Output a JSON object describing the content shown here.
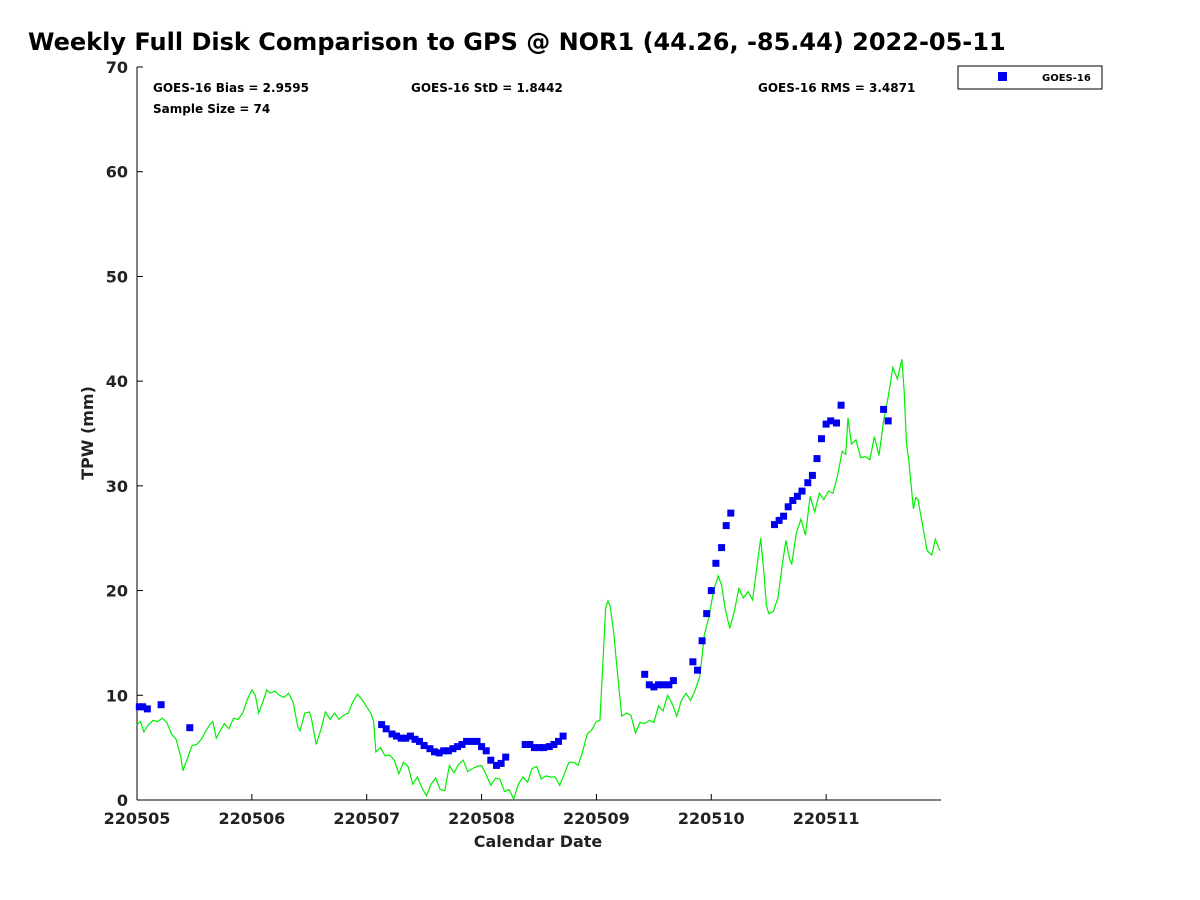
{
  "chart_data": {
    "type": "scatter",
    "title": "Weekly Full Disk Comparison to GPS @ NOR1 (44.26, -85.44) 2022-05-11",
    "xlabel": "Calendar Date",
    "ylabel": "TPW (mm)",
    "ylim": [
      0,
      70
    ],
    "xlim": [
      0,
      7
    ],
    "x_ticks": [
      {
        "x": 0,
        "label": "220505"
      },
      {
        "x": 1,
        "label": "220506"
      },
      {
        "x": 2,
        "label": "220507"
      },
      {
        "x": 3,
        "label": "220508"
      },
      {
        "x": 4,
        "label": "220509"
      },
      {
        "x": 5,
        "label": "220510"
      },
      {
        "x": 6,
        "label": "220511"
      }
    ],
    "y_ticks": [
      0,
      10,
      20,
      30,
      40,
      50,
      60,
      70
    ],
    "legend": {
      "position": "top-right",
      "entries": [
        "GOES-16"
      ]
    },
    "stats": {
      "bias": "GOES-16 Bias = 2.9595",
      "std": "GOES-16 StD = 1.8442",
      "rms": "GOES-16 RMS = 3.4871",
      "sample": "Sample Size = 74"
    },
    "series": [
      {
        "name": "GOES-16",
        "kind": "scatter",
        "color": "#0000ee",
        "points": [
          [
            0.02,
            8.9
          ],
          [
            0.05,
            8.9
          ],
          [
            0.09,
            8.7
          ],
          [
            0.21,
            9.1
          ],
          [
            0.46,
            6.9
          ],
          [
            2.13,
            7.2
          ],
          [
            2.17,
            6.8
          ],
          [
            2.22,
            6.3
          ],
          [
            2.26,
            6.1
          ],
          [
            2.3,
            5.9
          ],
          [
            2.34,
            5.9
          ],
          [
            2.38,
            6.1
          ],
          [
            2.42,
            5.8
          ],
          [
            2.46,
            5.6
          ],
          [
            2.5,
            5.2
          ],
          [
            2.55,
            4.9
          ],
          [
            2.59,
            4.6
          ],
          [
            2.63,
            4.5
          ],
          [
            2.67,
            4.7
          ],
          [
            2.71,
            4.7
          ],
          [
            2.75,
            4.9
          ],
          [
            2.79,
            5.1
          ],
          [
            2.83,
            5.3
          ],
          [
            2.87,
            5.6
          ],
          [
            2.92,
            5.6
          ],
          [
            2.96,
            5.6
          ],
          [
            3.0,
            5.1
          ],
          [
            3.04,
            4.7
          ],
          [
            3.08,
            3.8
          ],
          [
            3.13,
            3.3
          ],
          [
            3.17,
            3.5
          ],
          [
            3.21,
            4.1
          ],
          [
            3.38,
            5.3
          ],
          [
            3.42,
            5.3
          ],
          [
            3.46,
            5.0
          ],
          [
            3.5,
            5.0
          ],
          [
            3.54,
            5.0
          ],
          [
            3.59,
            5.1
          ],
          [
            3.63,
            5.3
          ],
          [
            3.67,
            5.6
          ],
          [
            3.71,
            6.1
          ],
          [
            4.42,
            12.0
          ],
          [
            4.46,
            11.0
          ],
          [
            4.5,
            10.8
          ],
          [
            4.54,
            11.0
          ],
          [
            4.58,
            11.0
          ],
          [
            4.63,
            11.0
          ],
          [
            4.67,
            11.4
          ],
          [
            4.84,
            13.2
          ],
          [
            4.88,
            12.4
          ],
          [
            4.92,
            15.2
          ],
          [
            4.96,
            17.8
          ],
          [
            5.0,
            20.0
          ],
          [
            5.04,
            22.6
          ],
          [
            5.09,
            24.1
          ],
          [
            5.13,
            26.2
          ],
          [
            5.17,
            27.4
          ],
          [
            5.55,
            26.3
          ],
          [
            5.59,
            26.7
          ],
          [
            5.63,
            27.1
          ],
          [
            5.67,
            28.0
          ],
          [
            5.71,
            28.6
          ],
          [
            5.75,
            29.0
          ],
          [
            5.79,
            29.5
          ],
          [
            5.84,
            30.3
          ],
          [
            5.88,
            31.0
          ],
          [
            5.92,
            32.6
          ],
          [
            5.96,
            34.5
          ],
          [
            6.0,
            35.9
          ],
          [
            6.04,
            36.2
          ],
          [
            6.09,
            36.0
          ],
          [
            6.13,
            37.7
          ],
          [
            6.5,
            37.3
          ],
          [
            6.54,
            36.2
          ]
        ]
      },
      {
        "name": "GPS",
        "kind": "line",
        "color": "#00ee00",
        "points": [
          [
            0.0,
            7.2
          ],
          [
            0.03,
            7.5
          ],
          [
            0.06,
            6.5
          ],
          [
            0.1,
            7.2
          ],
          [
            0.14,
            7.6
          ],
          [
            0.18,
            7.5
          ],
          [
            0.22,
            7.8
          ],
          [
            0.26,
            7.4
          ],
          [
            0.3,
            6.3
          ],
          [
            0.34,
            5.8
          ],
          [
            0.38,
            4.2
          ],
          [
            0.4,
            2.8
          ],
          [
            0.44,
            4.0
          ],
          [
            0.48,
            5.2
          ],
          [
            0.52,
            5.3
          ],
          [
            0.56,
            5.8
          ],
          [
            0.6,
            6.6
          ],
          [
            0.64,
            7.3
          ],
          [
            0.66,
            7.5
          ],
          [
            0.69,
            5.9
          ],
          [
            0.72,
            6.5
          ],
          [
            0.76,
            7.3
          ],
          [
            0.8,
            6.8
          ],
          [
            0.84,
            7.8
          ],
          [
            0.88,
            7.7
          ],
          [
            0.92,
            8.3
          ],
          [
            0.96,
            9.6
          ],
          [
            1.0,
            10.5
          ],
          [
            1.03,
            10.0
          ],
          [
            1.06,
            8.3
          ],
          [
            1.1,
            9.5
          ],
          [
            1.13,
            10.5
          ],
          [
            1.16,
            10.2
          ],
          [
            1.2,
            10.4
          ],
          [
            1.24,
            10.0
          ],
          [
            1.28,
            9.8
          ],
          [
            1.32,
            10.2
          ],
          [
            1.36,
            9.3
          ],
          [
            1.4,
            7.0
          ],
          [
            1.42,
            6.6
          ],
          [
            1.46,
            8.3
          ],
          [
            1.5,
            8.4
          ],
          [
            1.52,
            7.7
          ],
          [
            1.56,
            5.3
          ],
          [
            1.6,
            6.7
          ],
          [
            1.64,
            8.4
          ],
          [
            1.68,
            7.7
          ],
          [
            1.72,
            8.3
          ],
          [
            1.76,
            7.7
          ],
          [
            1.8,
            8.1
          ],
          [
            1.84,
            8.3
          ],
          [
            1.88,
            9.4
          ],
          [
            1.92,
            10.1
          ],
          [
            1.96,
            9.6
          ],
          [
            2.0,
            8.9
          ],
          [
            2.04,
            8.2
          ],
          [
            2.06,
            7.5
          ],
          [
            2.08,
            4.6
          ],
          [
            2.12,
            5.0
          ],
          [
            2.16,
            4.2
          ],
          [
            2.2,
            4.3
          ],
          [
            2.24,
            3.8
          ],
          [
            2.28,
            2.5
          ],
          [
            2.32,
            3.6
          ],
          [
            2.36,
            3.2
          ],
          [
            2.4,
            1.5
          ],
          [
            2.44,
            2.2
          ],
          [
            2.48,
            1.2
          ],
          [
            2.52,
            0.4
          ],
          [
            2.56,
            1.5
          ],
          [
            2.6,
            2.1
          ],
          [
            2.64,
            1.0
          ],
          [
            2.68,
            0.9
          ],
          [
            2.72,
            3.3
          ],
          [
            2.76,
            2.6
          ],
          [
            2.8,
            3.4
          ],
          [
            2.84,
            3.8
          ],
          [
            2.88,
            2.7
          ],
          [
            2.92,
            3.0
          ],
          [
            2.96,
            3.2
          ],
          [
            3.0,
            3.3
          ],
          [
            3.04,
            2.4
          ],
          [
            3.08,
            1.4
          ],
          [
            3.12,
            2.1
          ],
          [
            3.16,
            2.0
          ],
          [
            3.2,
            0.8
          ],
          [
            3.24,
            1.0
          ],
          [
            3.28,
            0.1
          ],
          [
            3.32,
            1.5
          ],
          [
            3.36,
            2.2
          ],
          [
            3.4,
            1.7
          ],
          [
            3.44,
            3.0
          ],
          [
            3.48,
            3.2
          ],
          [
            3.52,
            2.0
          ],
          [
            3.56,
            2.3
          ],
          [
            3.6,
            2.2
          ],
          [
            3.64,
            2.2
          ],
          [
            3.68,
            1.4
          ],
          [
            3.72,
            2.5
          ],
          [
            3.76,
            3.6
          ],
          [
            3.8,
            3.6
          ],
          [
            3.84,
            3.3
          ],
          [
            3.88,
            4.6
          ],
          [
            3.92,
            6.3
          ],
          [
            3.96,
            6.7
          ],
          [
            4.0,
            7.5
          ],
          [
            4.03,
            7.6
          ],
          [
            4.06,
            13.8
          ],
          [
            4.08,
            18.3
          ],
          [
            4.1,
            19.0
          ],
          [
            4.12,
            18.5
          ],
          [
            4.15,
            16.0
          ],
          [
            4.18,
            12.5
          ],
          [
            4.22,
            8.0
          ],
          [
            4.26,
            8.3
          ],
          [
            4.3,
            8.1
          ],
          [
            4.34,
            6.4
          ],
          [
            4.38,
            7.4
          ],
          [
            4.42,
            7.3
          ],
          [
            4.46,
            7.6
          ],
          [
            4.5,
            7.4
          ],
          [
            4.54,
            9.0
          ],
          [
            4.58,
            8.5
          ],
          [
            4.62,
            10.0
          ],
          [
            4.66,
            9.2
          ],
          [
            4.7,
            8.0
          ],
          [
            4.74,
            9.5
          ],
          [
            4.78,
            10.2
          ],
          [
            4.82,
            9.5
          ],
          [
            4.86,
            10.5
          ],
          [
            4.9,
            11.8
          ],
          [
            4.94,
            15.8
          ],
          [
            4.98,
            17.5
          ],
          [
            5.02,
            20.0
          ],
          [
            5.06,
            21.4
          ],
          [
            5.09,
            20.5
          ],
          [
            5.12,
            18.3
          ],
          [
            5.16,
            16.4
          ],
          [
            5.2,
            18.0
          ],
          [
            5.24,
            20.2
          ],
          [
            5.28,
            19.3
          ],
          [
            5.32,
            19.9
          ],
          [
            5.36,
            19.1
          ],
          [
            5.4,
            22.5
          ],
          [
            5.43,
            25.0
          ],
          [
            5.46,
            21.5
          ],
          [
            5.48,
            18.6
          ],
          [
            5.5,
            17.8
          ],
          [
            5.54,
            18.0
          ],
          [
            5.58,
            19.3
          ],
          [
            5.62,
            22.6
          ],
          [
            5.65,
            24.8
          ],
          [
            5.68,
            23.1
          ],
          [
            5.7,
            22.5
          ],
          [
            5.74,
            25.5
          ],
          [
            5.78,
            26.8
          ],
          [
            5.82,
            25.3
          ],
          [
            5.86,
            29.0
          ],
          [
            5.9,
            27.5
          ],
          [
            5.94,
            29.3
          ],
          [
            5.98,
            28.7
          ],
          [
            6.02,
            29.5
          ],
          [
            6.06,
            29.3
          ],
          [
            6.1,
            31.0
          ],
          [
            6.14,
            33.3
          ],
          [
            6.17,
            33.0
          ],
          [
            6.19,
            36.5
          ],
          [
            6.22,
            34.0
          ],
          [
            6.26,
            34.4
          ],
          [
            6.3,
            32.7
          ],
          [
            6.34,
            32.8
          ],
          [
            6.38,
            32.5
          ],
          [
            6.42,
            34.7
          ],
          [
            6.46,
            32.9
          ],
          [
            6.5,
            36.2
          ],
          [
            6.54,
            38.5
          ],
          [
            6.58,
            41.3
          ],
          [
            6.62,
            40.2
          ],
          [
            6.66,
            42.1
          ],
          [
            6.68,
            39.0
          ],
          [
            6.7,
            34.0
          ],
          [
            6.72,
            32.4
          ],
          [
            6.76,
            27.8
          ],
          [
            6.78,
            28.9
          ],
          [
            6.8,
            28.7
          ],
          [
            6.84,
            26.2
          ],
          [
            6.88,
            23.8
          ],
          [
            6.92,
            23.4
          ],
          [
            6.95,
            24.9
          ],
          [
            6.99,
            23.8
          ]
        ]
      }
    ]
  }
}
